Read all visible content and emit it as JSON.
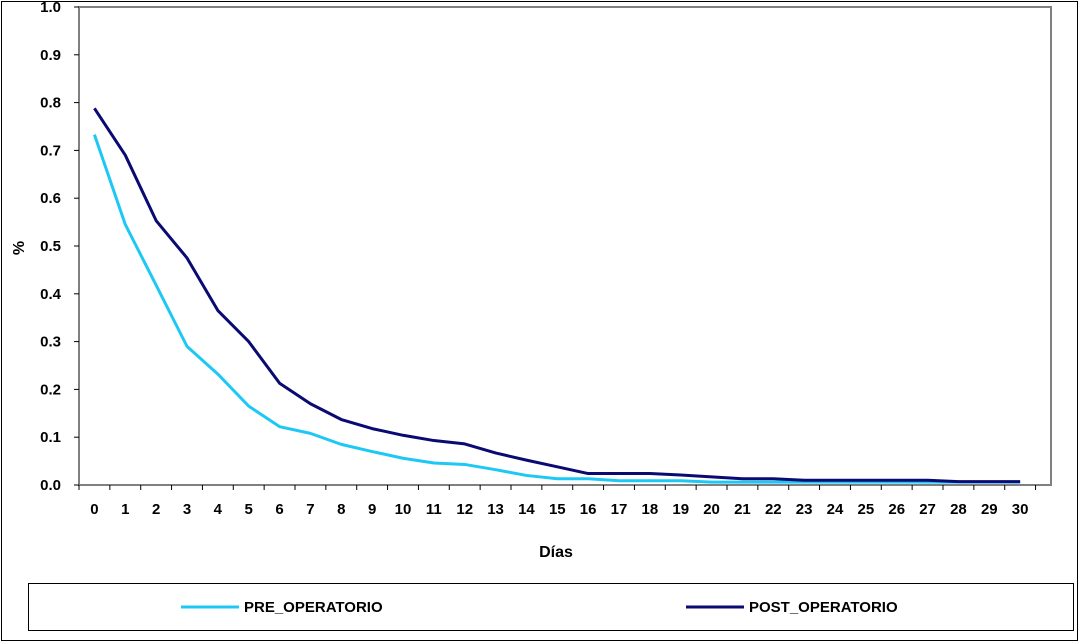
{
  "chart_data": {
    "type": "line",
    "title": "",
    "xlabel": "Días",
    "ylabel": "%",
    "x": [
      0,
      1,
      2,
      3,
      4,
      5,
      6,
      7,
      8,
      9,
      10,
      11,
      12,
      13,
      14,
      15,
      16,
      17,
      18,
      19,
      20,
      21,
      22,
      23,
      24,
      25,
      26,
      27,
      28,
      29,
      30
    ],
    "x_tick_labels": [
      "0",
      "1",
      "2",
      "3",
      "4",
      "5",
      "6",
      "7",
      "8",
      "9",
      "10",
      "11",
      "12",
      "13",
      "14",
      "15",
      "16",
      "17",
      "18",
      "19",
      "20",
      "21",
      "22",
      "23",
      "24",
      "25",
      "26",
      "27",
      "28",
      "29",
      "30"
    ],
    "y_tick_labels": [
      "0.0",
      "0.1",
      "0.2",
      "0.3",
      "0.4",
      "0.5",
      "0.6",
      "0.7",
      "0.8",
      "0.9",
      "1.0"
    ],
    "ylim": [
      0,
      1.0
    ],
    "grid": false,
    "legend_position": "bottom",
    "series": [
      {
        "name": "PRE_OPERATORIO",
        "color": "#1ec8f5",
        "values": [
          0.733,
          0.545,
          0.418,
          0.29,
          0.232,
          0.165,
          0.122,
          0.108,
          0.085,
          0.07,
          0.056,
          0.046,
          0.043,
          0.032,
          0.02,
          0.013,
          0.013,
          0.009,
          0.009,
          0.009,
          0.006,
          0.006,
          0.006,
          0.006,
          0.006,
          0.006,
          0.006,
          0.006,
          0.006,
          0.006,
          0.006
        ]
      },
      {
        "name": "POST_OPERATORIO",
        "color": "#0a0a73",
        "values": [
          0.788,
          0.69,
          0.553,
          0.475,
          0.365,
          0.3,
          0.213,
          0.17,
          0.137,
          0.118,
          0.104,
          0.093,
          0.086,
          0.067,
          0.052,
          0.038,
          0.024,
          0.024,
          0.024,
          0.021,
          0.017,
          0.013,
          0.013,
          0.01,
          0.01,
          0.01,
          0.01,
          0.01,
          0.007,
          0.007,
          0.007
        ]
      }
    ]
  }
}
